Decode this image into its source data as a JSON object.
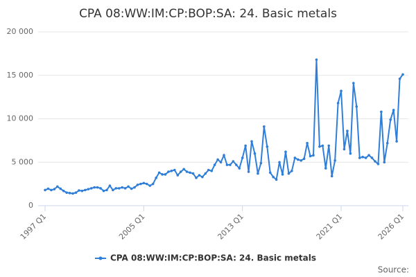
{
  "chart_data": {
    "type": "line",
    "title": "CPA 08:WW:IM:CP:BOP:SA: 24. Basic metals",
    "categories": [
      "1997 Q1",
      null,
      null,
      null,
      null,
      null,
      null,
      null,
      null,
      null,
      null,
      null,
      null,
      null,
      null,
      null,
      null,
      null,
      null,
      null,
      null,
      null,
      null,
      null,
      null,
      null,
      null,
      null,
      null,
      null,
      null,
      null,
      "2005 Q1",
      null,
      null,
      null,
      null,
      null,
      null,
      null,
      null,
      null,
      null,
      null,
      null,
      null,
      null,
      null,
      null,
      null,
      null,
      null,
      null,
      null,
      null,
      null,
      null,
      null,
      null,
      null,
      null,
      null,
      null,
      null,
      "2013 Q1",
      null,
      null,
      null,
      null,
      null,
      null,
      null,
      null,
      null,
      null,
      null,
      null,
      null,
      null,
      null,
      null,
      null,
      null,
      null,
      null,
      null,
      null,
      null,
      null,
      null,
      null,
      null,
      null,
      null,
      null,
      null,
      "2021 Q1",
      null,
      null,
      null,
      null,
      null,
      null,
      null,
      null,
      null,
      null,
      null,
      null,
      null,
      null,
      null,
      null,
      null,
      null,
      null,
      "2026 Q1"
    ],
    "series": [
      {
        "name": "CPA 08:WW:IM:CP:BOP:SA: 24. Basic metals",
        "color": "#2f7ed8",
        "values": [
          1800,
          1950,
          1800,
          1900,
          2200,
          1950,
          1700,
          1500,
          1450,
          1400,
          1500,
          1750,
          1700,
          1800,
          1900,
          2000,
          2100,
          2100,
          2000,
          1700,
          1800,
          2300,
          1800,
          2000,
          2000,
          2100,
          2000,
          2200,
          1950,
          2100,
          2400,
          2500,
          2600,
          2500,
          2300,
          2500,
          3200,
          3800,
          3600,
          3600,
          3900,
          4000,
          4100,
          3500,
          3900,
          4200,
          3900,
          3800,
          3700,
          3200,
          3500,
          3300,
          3700,
          4100,
          4000,
          4700,
          5300,
          5000,
          5800,
          4700,
          4700,
          5100,
          4700,
          4300,
          5500,
          6900,
          3900,
          7400,
          6000,
          3700,
          4900,
          9100,
          6800,
          3800,
          3300,
          3000,
          5000,
          3600,
          6200,
          3700,
          4000,
          5500,
          5300,
          5200,
          5400,
          7200,
          5700,
          5800,
          16800,
          6800,
          6900,
          4300,
          6900,
          3400,
          5200,
          11800,
          13200,
          6500,
          8600,
          6000,
          14100,
          11400,
          5500,
          5600,
          5500,
          5800,
          5500,
          5100,
          4800,
          10800,
          5000,
          7200,
          9900,
          11000,
          7400,
          14600,
          15100
        ]
      }
    ],
    "ylim": [
      0,
      20000
    ],
    "yticks": [
      0,
      {
        "value": 5000,
        "label": "5 000"
      },
      {
        "value": 10000,
        "label": "10 000"
      },
      {
        "value": 15000,
        "label": "15 000"
      },
      {
        "value": 20000,
        "label": "20 000"
      }
    ],
    "grid": true,
    "source": "Source:"
  }
}
